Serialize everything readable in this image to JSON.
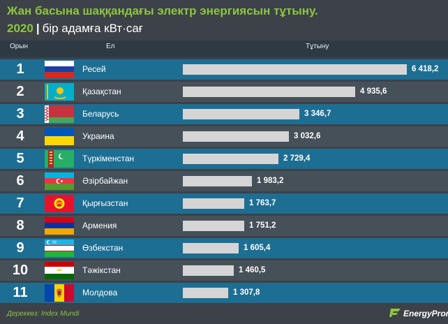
{
  "title": "Жан басына шаққандағы электр энергиясын тұтыну.",
  "subtitle": {
    "year": "2020",
    "separator": "|",
    "unit": "бір адамға кВт·сағ"
  },
  "headers": {
    "rank": "Орын",
    "country": "Ел",
    "consumption": "Тұтыну"
  },
  "source": "Дереккөз: Index Mundi",
  "logo": "EnergyProm",
  "colors": {
    "title": "#8cc63f",
    "row_highlight": "#1d6e93",
    "row_even": "#1d7399",
    "row_odd": "#465059",
    "bar": "#d5d5d5"
  },
  "chart_data": {
    "type": "bar",
    "title": "Жан басына шаққандағы электр энергиясын тұтыну.",
    "unit": "бір адамға кВт·сағ",
    "year": "2020",
    "orientation": "horizontal",
    "categories": [
      "Ресей",
      "Қазақстан",
      "Беларусь",
      "Украина",
      "Түркіменстан",
      "Әзірбайжан",
      "Қырғызстан",
      "Армения",
      "Өзбекстан",
      "Тәжікстан",
      "Молдова"
    ],
    "ranks": [
      "1",
      "2",
      "3",
      "4",
      "5",
      "6",
      "7",
      "8",
      "9",
      "10",
      "11"
    ],
    "values": [
      6418.2,
      4935.6,
      3346.7,
      3032.6,
      2729.4,
      1983.2,
      1763.7,
      1751.2,
      1605.4,
      1460.5,
      1307.8
    ],
    "value_labels": [
      "6 418,2",
      "4 935,6",
      "3 346,7",
      "3 032,6",
      "2 729,4",
      "1 983,2",
      "1 763,7",
      "1 751,2",
      "1 605,4",
      "1 460,5",
      "1 307,8"
    ],
    "flags": [
      "russia-flag",
      "kazakhstan-flag",
      "belarus-flag",
      "ukraine-flag",
      "turkmenistan-flag",
      "azerbaijan-flag",
      "kyrgyzstan-flag",
      "armenia-flag",
      "uzbekistan-flag",
      "tajikistan-flag",
      "moldova-flag"
    ],
    "xlim": [
      0,
      6418.2
    ]
  }
}
